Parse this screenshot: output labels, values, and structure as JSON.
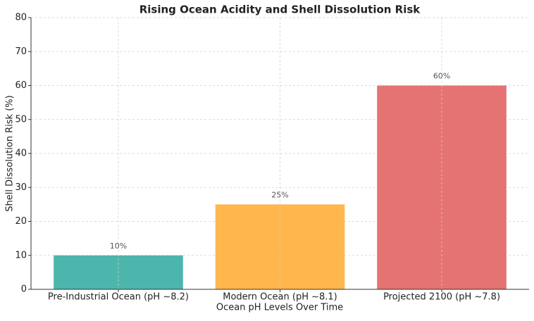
{
  "chart_data": {
    "type": "bar",
    "title": "Rising Ocean Acidity and Shell Dissolution Risk",
    "xlabel": "Ocean pH Levels Over Time",
    "ylabel": "Shell Dissolution Risk (%)",
    "categories": [
      "Pre-Industrial Ocean (pH ~8.2)",
      "Modern Ocean (pH ~8.1)",
      "Projected 2100 (pH ~7.8)"
    ],
    "values": [
      10,
      25,
      60
    ],
    "value_labels": [
      "10%",
      "25%",
      "60%"
    ],
    "colors": [
      "#4db6ac",
      "#ffb74d",
      "#e57373"
    ],
    "ylim": [
      0,
      80
    ],
    "yticks": [
      0,
      10,
      20,
      30,
      40,
      50,
      60,
      70,
      80
    ],
    "grid": true
  }
}
